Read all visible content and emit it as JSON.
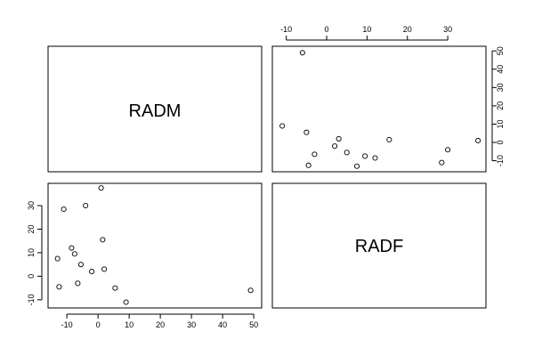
{
  "chart_data": {
    "type": "scatter",
    "title": "",
    "variables": [
      "RADM",
      "RADF"
    ],
    "ranges": {
      "RADM": [
        -13.5,
        50
      ],
      "RADF": [
        -11.5,
        37.5
      ]
    },
    "ticks": {
      "RADM": [
        -10,
        0,
        10,
        20,
        30,
        40,
        50
      ],
      "RADF": [
        -10,
        0,
        10,
        20,
        30
      ],
      "RADF_top": [
        -10,
        0,
        10,
        20,
        30
      ],
      "RADM_right": [
        -10,
        0,
        10,
        20,
        30,
        40,
        50
      ]
    },
    "points": [
      {
        "RADM": 49,
        "RADF": -6
      },
      {
        "RADM": -13,
        "RADF": 7.5
      },
      {
        "RADM": -12.5,
        "RADF": -4.5
      },
      {
        "RADM": -11,
        "RADF": 28.5
      },
      {
        "RADM": -8.5,
        "RADF": 12
      },
      {
        "RADM": -7.5,
        "RADF": 9.5
      },
      {
        "RADM": -6.5,
        "RADF": -3
      },
      {
        "RADM": -5.5,
        "RADF": 5
      },
      {
        "RADM": -4,
        "RADF": 30
      },
      {
        "RADM": -2,
        "RADF": 2
      },
      {
        "RADM": 1,
        "RADF": 37.5
      },
      {
        "RADM": 1.5,
        "RADF": 15.5
      },
      {
        "RADM": 2,
        "RADF": 3
      },
      {
        "RADM": 5.5,
        "RADF": -5
      },
      {
        "RADM": 9,
        "RADF": -11
      }
    ]
  }
}
